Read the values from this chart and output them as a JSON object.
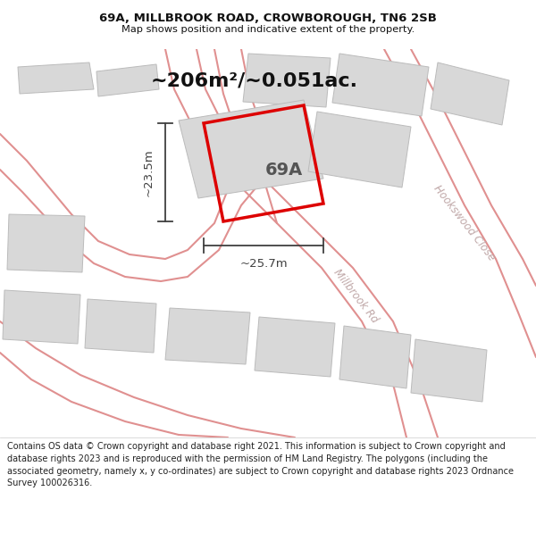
{
  "title_line1": "69A, MILLBROOK ROAD, CROWBOROUGH, TN6 2SB",
  "title_line2": "Map shows position and indicative extent of the property.",
  "area_text": "~206m²/~0.051ac.",
  "label_69A": "69A",
  "dim_horizontal": "~25.7m",
  "dim_vertical": "~23.5m",
  "road_label1": "Millbrook Rd",
  "road_label2": "Hookswood Close",
  "footer_text": "Contains OS data © Crown copyright and database right 2021. This information is subject to Crown copyright and database rights 2023 and is reproduced with the permission of HM Land Registry. The polygons (including the associated geometry, namely x, y co-ordinates) are subject to Crown copyright and database rights 2023 Ordnance Survey 100026316.",
  "map_bg": "#f7f5f3",
  "plot_color": "#dd0000",
  "building_color": "#d8d8d8",
  "building_edge": "#bbbbbb",
  "road_line_color": "#e09090",
  "road_fill_color": "#f7f5f3",
  "dim_line_color": "#404040",
  "road_text_color": "#c0a8a8",
  "title_color": "#111111",
  "footer_color": "#222222",
  "white": "#ffffff"
}
